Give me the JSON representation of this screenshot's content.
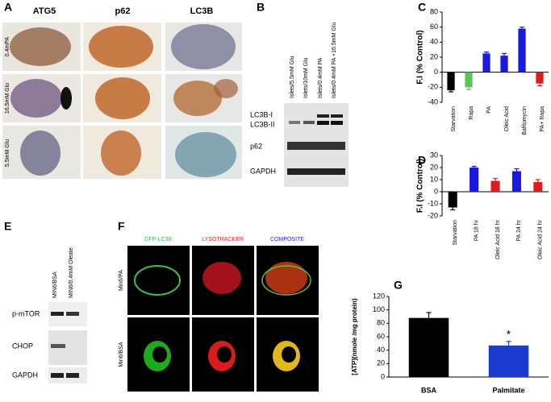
{
  "panel_labels": [
    "A",
    "B",
    "C",
    "D",
    "E",
    "F",
    "G"
  ],
  "panel_a": {
    "columns": [
      "ATG5",
      "p62",
      "LC3B"
    ],
    "rows": [
      "0.4mPA",
      "16.5mM Glu",
      "5.5mM Glu"
    ]
  },
  "panel_b": {
    "lanes": [
      "Islets/5.5mM Glu",
      "Islets/10mM Glu",
      "Islets/0.4mM PA",
      "Islets/0.4mM PA +16.5mM Glu"
    ],
    "bands": [
      "LC3B-I",
      "LC3B-II",
      "p62",
      "GAPDH"
    ]
  },
  "panel_e": {
    "lanes": [
      "MIN6/BSA",
      "MIN6/0.4mM Oleate"
    ],
    "bands": [
      "p-mTOR",
      "CHOP",
      "GAPDH"
    ]
  },
  "panel_f": {
    "columns": [
      "GFP-LC3B",
      "LYSOTRACKER",
      "COMPOSITE"
    ],
    "rows": [
      "Min6/PA",
      "Min6/BSA"
    ]
  },
  "chart_data": [
    {
      "type": "bar",
      "y_label": "F.I (% Control)",
      "categories": [
        "Starvation",
        "Rapa",
        "PA",
        "Oleic Acid",
        "Bafilomycin",
        "PA+ Rapa"
      ],
      "values": [
        -24,
        -20,
        25,
        22,
        58,
        -15
      ],
      "errors": [
        2,
        3,
        2,
        3,
        2,
        3
      ],
      "colors": [
        "#000000",
        "#5cc45c",
        "#1a1adf",
        "#1a1adf",
        "#1a1adf",
        "#e01b1b"
      ],
      "ylim": [
        -40,
        80
      ],
      "yticks": [
        -40,
        -20,
        0,
        20,
        40,
        60,
        80
      ]
    },
    {
      "type": "bar",
      "y_label": "F.I (% Control)",
      "categories": [
        "Starvation",
        "PA 18 hr",
        "Oleic Acid 18 hr",
        "PA 24 hr",
        "Oleic Acid 24 hr"
      ],
      "values": [
        -13,
        20,
        9,
        17,
        8
      ],
      "errors": [
        2,
        1,
        2,
        2,
        2
      ],
      "colors": [
        "#000000",
        "#1a1adf",
        "#e01b1b",
        "#1a1adf",
        "#e01b1b"
      ],
      "ylim": [
        -20,
        30
      ],
      "yticks": [
        -20,
        -10,
        0,
        10,
        20,
        30
      ]
    },
    {
      "type": "bar",
      "y_label": "[ATP](nmole /mg protein)",
      "categories": [
        "BSA",
        "Palmitate"
      ],
      "values": [
        88,
        47
      ],
      "errors": [
        8,
        6
      ],
      "colors": [
        "#000000",
        "#1a3ad0"
      ],
      "ylim": [
        0,
        120
      ],
      "yticks": [
        0,
        20,
        40,
        60,
        80,
        100,
        120
      ],
      "annotations": [
        "*"
      ]
    }
  ]
}
